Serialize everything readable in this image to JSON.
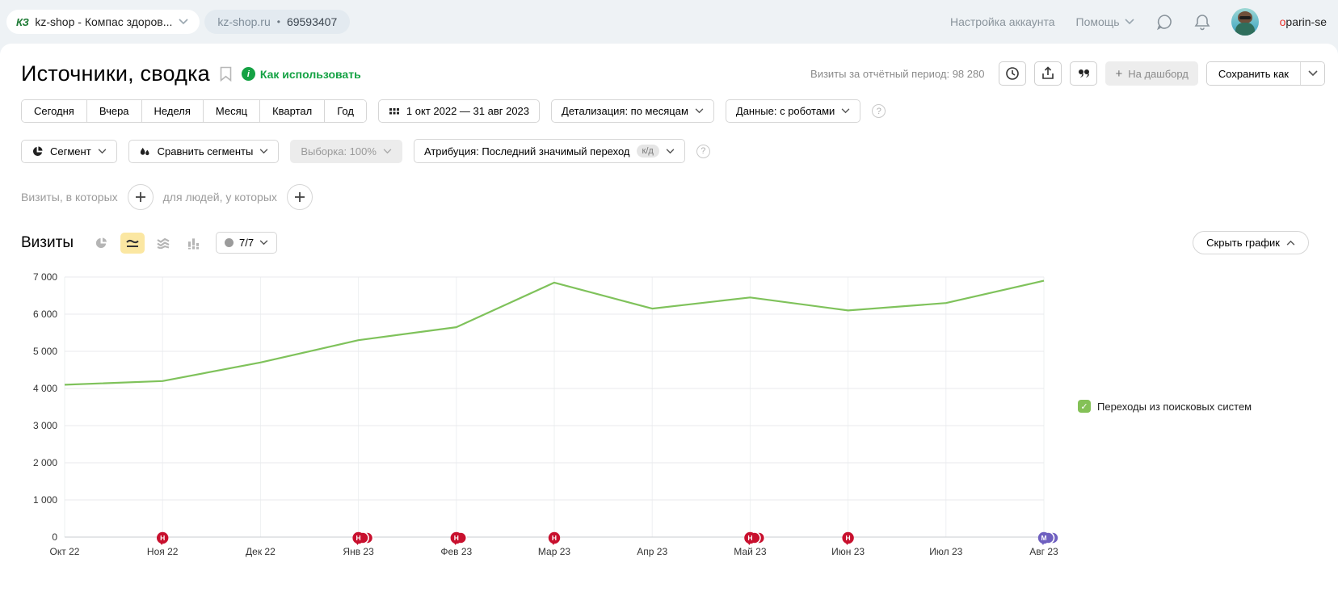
{
  "topbar": {
    "counter_logo": "КЗ",
    "counter_name": "kz-shop - Компас здоров...",
    "counter_domain": "kz-shop.ru",
    "counter_dot": "•",
    "counter_id": "69593407",
    "account_settings": "Настройка аккаунта",
    "help": "Помощь",
    "username_first": "o",
    "username_rest": "parin-se"
  },
  "header": {
    "title": "Источники, сводка",
    "how_to_use": "Как использовать",
    "visits_period_label": "Визиты за отчётный период:",
    "visits_period_value": "98 280",
    "to_dashboard": "На дашборд",
    "save_as": "Сохранить как"
  },
  "filters": {
    "periods": [
      "Сегодня",
      "Вчера",
      "Неделя",
      "Месяц",
      "Квартал",
      "Год"
    ],
    "date_range": "1 окт 2022 — 31 авг 2023",
    "detail": "Детализация: по месяцам",
    "data_mode": "Данные: с роботами",
    "segment": "Сегмент",
    "compare": "Сравнить сегменты",
    "sampling": "Выборка: 100%",
    "attribution": "Атрибуция: Последний значимый переход",
    "attribution_badge": "к/д",
    "visits_in_which": "Визиты, в которых",
    "for_people": "для людей, у которых"
  },
  "chart_section": {
    "title": "Визиты",
    "series_counter": "7/7",
    "hide_chart": "Скрыть график",
    "legend_label": "Переходы из поисковых систем"
  },
  "chart_data": {
    "type": "line",
    "title": "Визиты",
    "categories": [
      "Окт 22",
      "Ноя 22",
      "Дек 22",
      "Янв 23",
      "Фев 23",
      "Мар 23",
      "Апр 23",
      "Май 23",
      "Июн 23",
      "Июл 23",
      "Авг 23"
    ],
    "series": [
      {
        "name": "Переходы из поисковых систем",
        "color": "#7fc25b",
        "values": [
          4100,
          4200,
          4700,
          5300,
          5650,
          6850,
          6150,
          6450,
          6100,
          6300,
          6900
        ]
      }
    ],
    "ylim": [
      0,
      7000
    ],
    "ytick_step": 1000,
    "grid": true,
    "legend_position": "right",
    "markers": [
      {
        "category": "Ноя 22",
        "letter": "Н",
        "count": 1,
        "color": "#c8102e"
      },
      {
        "category": "Янв 23",
        "letter": "Н",
        "count": 3,
        "color": "#c8102e"
      },
      {
        "category": "Фев 23",
        "letter": "Н",
        "count": 2,
        "color": "#c8102e"
      },
      {
        "category": "Мар 23",
        "letter": "Н",
        "count": 1,
        "color": "#c8102e"
      },
      {
        "category": "Май 23",
        "letter": "Н",
        "count": 3,
        "color": "#c8102e"
      },
      {
        "category": "Июн 23",
        "letter": "Н",
        "count": 1,
        "color": "#c8102e"
      },
      {
        "category": "Авг 23",
        "letter": "М",
        "count": 3,
        "color": "#6f60c0"
      }
    ]
  },
  "colors": {
    "line_green": "#7fc25b",
    "legend_check_green": "#84c157",
    "marker_red": "#c8102e",
    "marker_purple": "#6f60c0",
    "selected_tool_yellow": "#fbe7a2",
    "link_green": "#15a244"
  }
}
